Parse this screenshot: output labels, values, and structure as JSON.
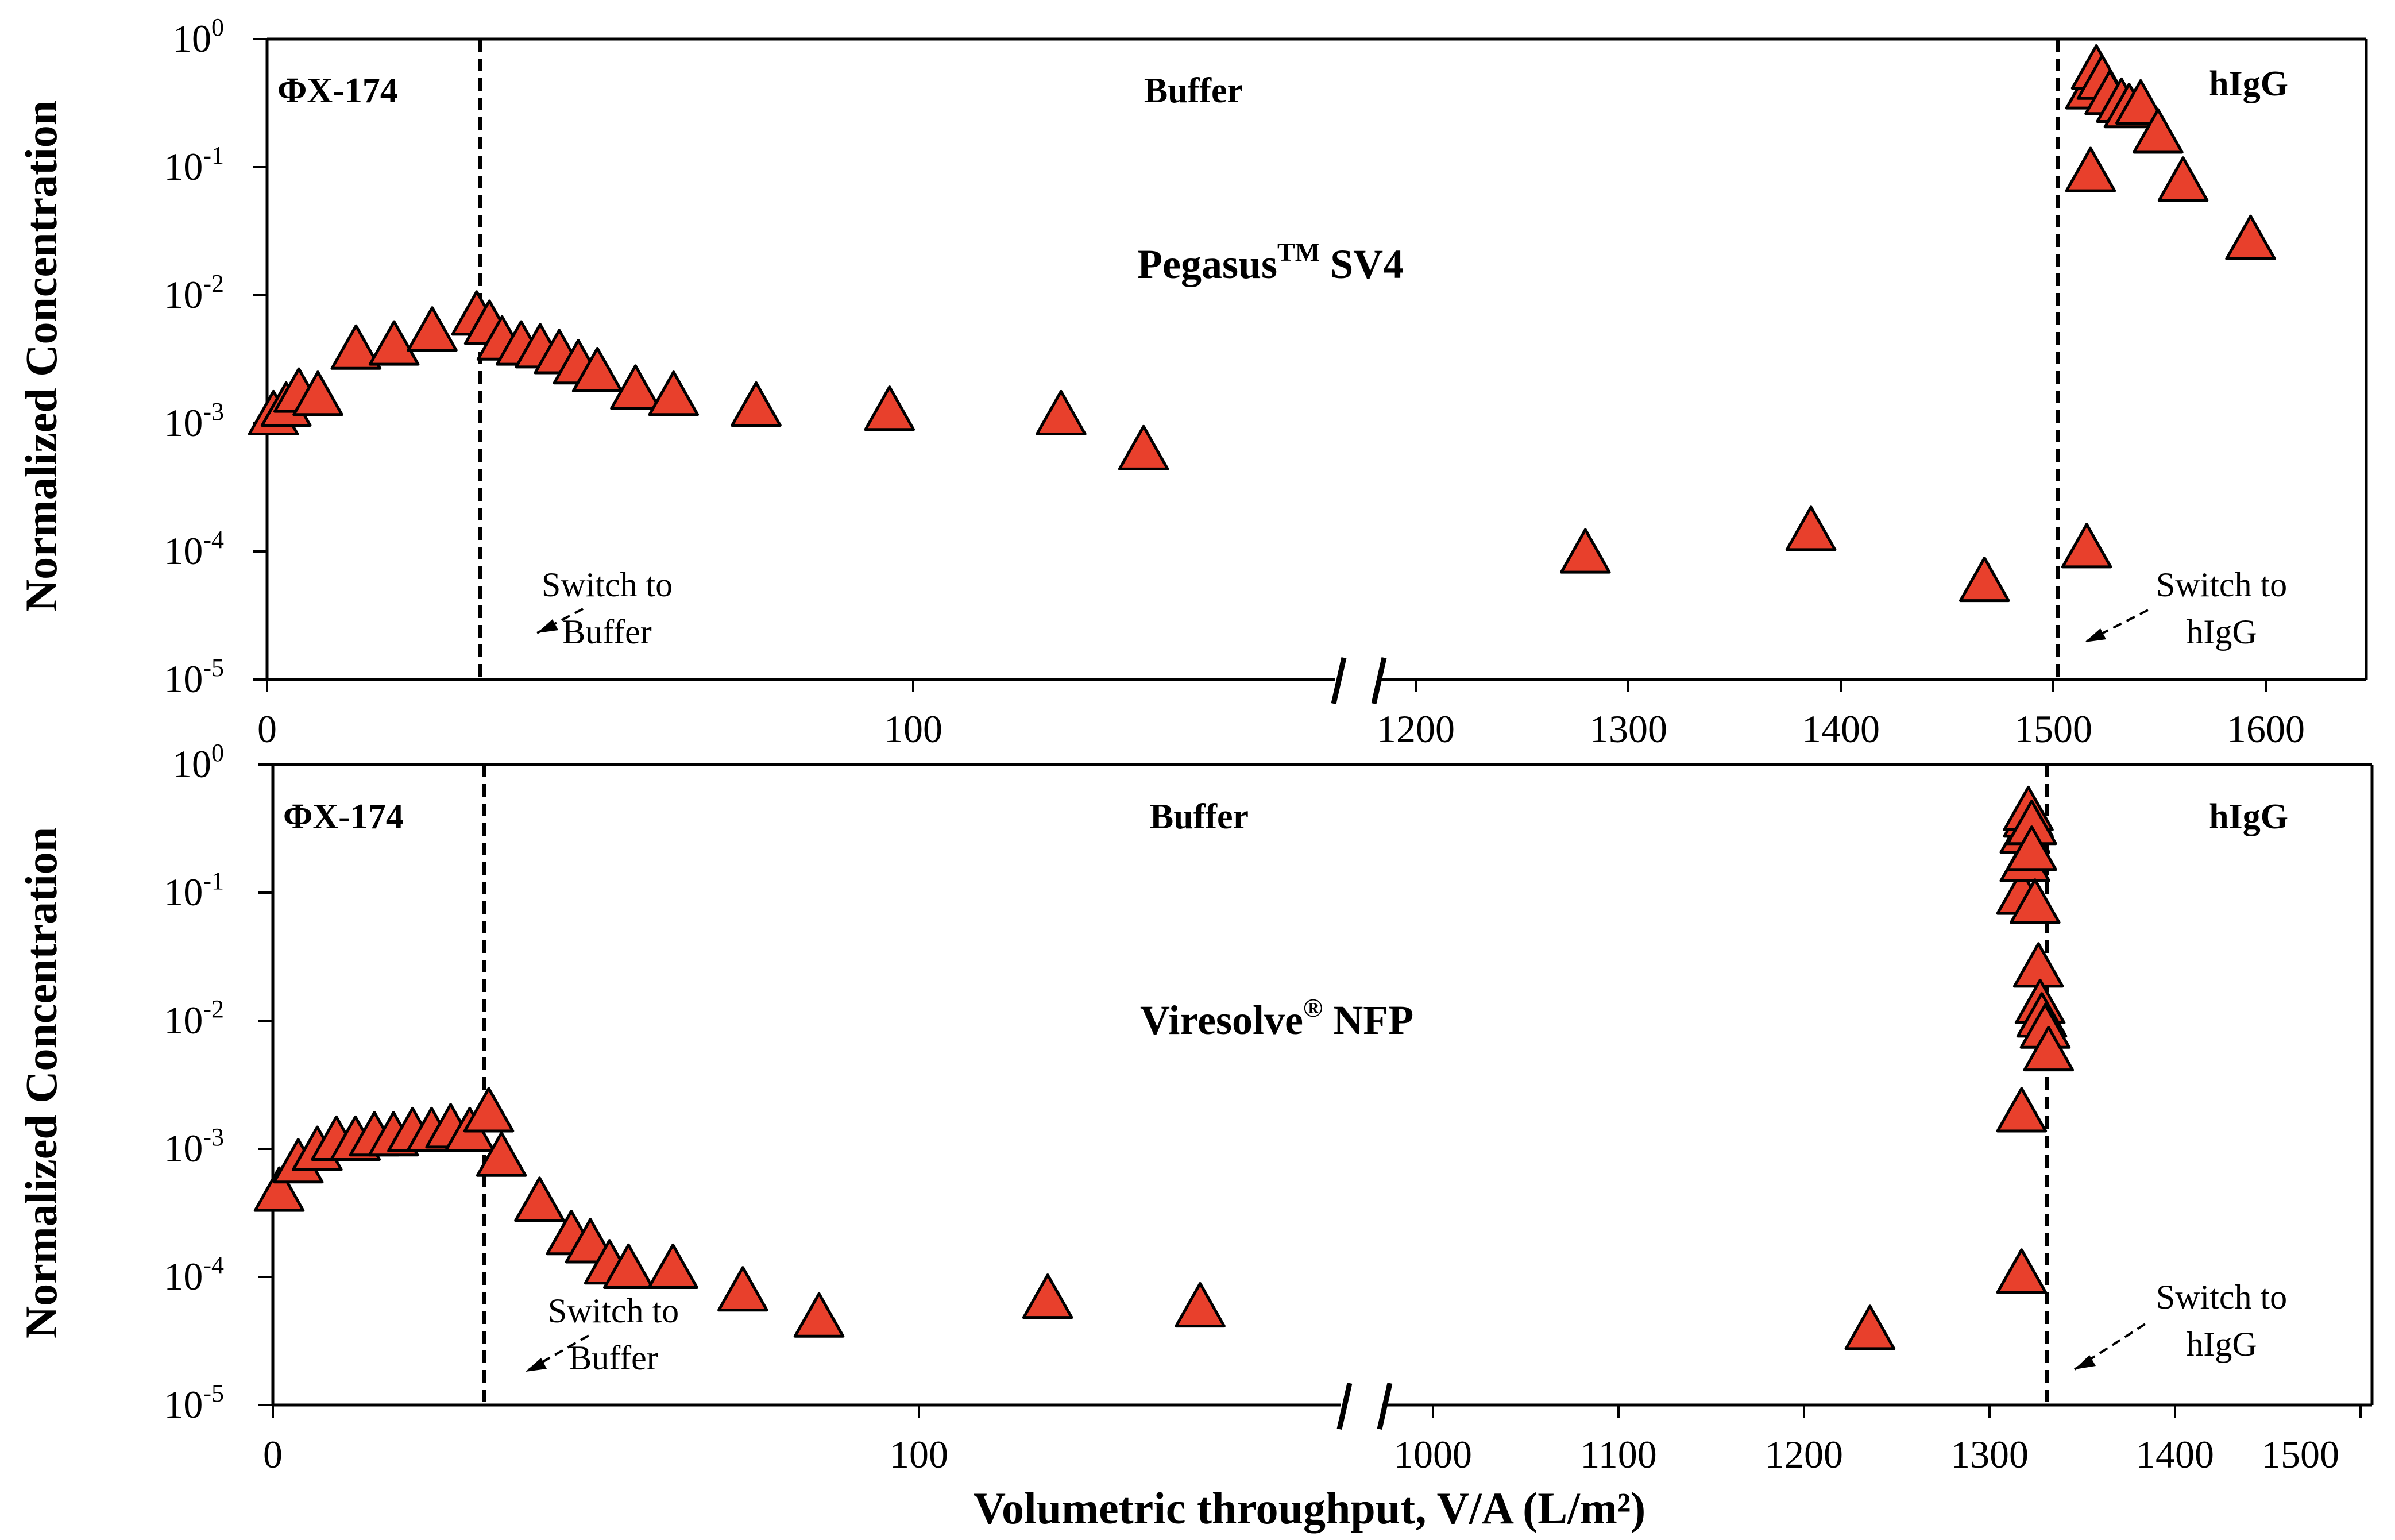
{
  "colors": {
    "marker_fill": "#e8402c",
    "marker_stroke": "#000000"
  },
  "chart_data": [
    {
      "type": "scatter",
      "id": "top",
      "title": "Pegasus",
      "title_sup": "TM",
      "title_rest": " SV4",
      "xlabel": "",
      "ylabel": "Normalized Concentration",
      "yscale": "log",
      "ylim": [
        1e-05,
        1
      ],
      "y_ticks": [
        {
          "base": "10",
          "exp": "0"
        },
        {
          "base": "10",
          "exp": "-1"
        },
        {
          "base": "10",
          "exp": "-2"
        },
        {
          "base": "10",
          "exp": "-3"
        },
        {
          "base": "10",
          "exp": "-4"
        },
        {
          "base": "10",
          "exp": "-5"
        }
      ],
      "x_segment1_range": [
        0,
        170
      ],
      "x_segment2_range": [
        1130,
        1645
      ],
      "x_tick_labels_seg1": [
        "0",
        "100"
      ],
      "x_tick_labels_seg2": [
        "1200",
        "1300",
        "1400",
        "1500",
        "1600"
      ],
      "switch_buffer_x": 33,
      "switch_hIgG_x": 1500,
      "phase_labels": [
        "ΦX-174",
        "Buffer",
        "hIgG"
      ],
      "annotation_buffer": [
        "Switch to",
        "Buffer"
      ],
      "annotation_higg": [
        "Switch to",
        "hIgG"
      ],
      "points_seg1": [
        [
          1,
          0.0012
        ],
        [
          3,
          0.0014
        ],
        [
          5,
          0.0018
        ],
        [
          8,
          0.0017
        ],
        [
          14,
          0.0039
        ],
        [
          20,
          0.0042
        ],
        [
          26,
          0.0054
        ],
        [
          33,
          0.0072
        ],
        [
          35,
          0.0061
        ],
        [
          37,
          0.0046
        ],
        [
          40,
          0.0042
        ],
        [
          43,
          0.004
        ],
        [
          46,
          0.0036
        ],
        [
          49,
          0.003
        ],
        [
          52,
          0.0026
        ],
        [
          58,
          0.0019
        ],
        [
          64,
          0.0017
        ],
        [
          77,
          0.0014
        ],
        [
          98,
          0.0013
        ],
        [
          125,
          0.0012
        ],
        [
          138,
          0.00064
        ]
      ],
      "points_seg2": [
        [
          1240,
          0.0001
        ],
        [
          1357,
          0.00015
        ],
        [
          1447,
          6e-05
        ],
        [
          1500,
          0.00011
        ],
        [
          1502,
          0.095
        ],
        [
          1502,
          0.42
        ],
        [
          1505,
          0.6
        ],
        [
          1508,
          0.5
        ],
        [
          1512,
          0.38
        ],
        [
          1518,
          0.33
        ],
        [
          1522,
          0.3
        ],
        [
          1528,
          0.32
        ],
        [
          1537,
          0.19
        ],
        [
          1550,
          0.08
        ],
        [
          1585,
          0.028
        ]
      ]
    },
    {
      "type": "scatter",
      "id": "bottom",
      "title": "Viresolve",
      "title_sup": "®",
      "title_rest": " NFP",
      "xlabel": "Volumetric throughput, V/A (L/m²)",
      "ylabel": "Normalized Concentration",
      "yscale": "log",
      "ylim": [
        1e-05,
        1
      ],
      "y_ticks": [
        {
          "base": "10",
          "exp": "0"
        },
        {
          "base": "10",
          "exp": "-1"
        },
        {
          "base": "10",
          "exp": "-2"
        },
        {
          "base": "10",
          "exp": "-3"
        },
        {
          "base": "10",
          "exp": "-4"
        },
        {
          "base": "10",
          "exp": "-5"
        }
      ],
      "x_segment1_range": [
        0,
        170
      ],
      "x_segment2_range": [
        975,
        1560
      ],
      "x_tick_labels_seg1": [
        "0",
        "100"
      ],
      "x_tick_labels_seg2": [
        "1000",
        "1100",
        "1200",
        "1300",
        "1400",
        "1500"
      ],
      "switch_buffer_x": 33,
      "switch_hIgG_x": 1355,
      "phase_labels": [
        "ΦX-174",
        "Buffer",
        "hIgG"
      ],
      "annotation_buffer": [
        "Switch to",
        "Buffer"
      ],
      "annotation_higg": [
        "Switch to",
        "hIgG"
      ],
      "points_seg1": [
        [
          1,
          0.00048
        ],
        [
          4,
          0.0008
        ],
        [
          7,
          0.001
        ],
        [
          10,
          0.0012
        ],
        [
          13,
          0.0012
        ],
        [
          16,
          0.0013
        ],
        [
          19,
          0.0013
        ],
        [
          22,
          0.0014
        ],
        [
          25,
          0.0014
        ],
        [
          28,
          0.0015
        ],
        [
          31,
          0.0014
        ],
        [
          34,
          0.002
        ],
        [
          36,
          0.0009
        ],
        [
          42,
          0.0004
        ],
        [
          47,
          0.00022
        ],
        [
          50,
          0.00019
        ],
        [
          53,
          0.00013
        ],
        [
          56,
          0.00012
        ],
        [
          63,
          0.00012
        ],
        [
          74,
          8e-05
        ],
        [
          86,
          5e-05
        ],
        [
          122,
          7e-05
        ],
        [
          146,
          6e-05
        ]
      ],
      "points_seg2": [
        [
          1262,
          4e-05
        ],
        [
          1352,
          0.00011
        ],
        [
          1352,
          0.002
        ],
        [
          1352,
          0.1
        ],
        [
          1354,
          0.18
        ],
        [
          1354,
          0.3
        ],
        [
          1356,
          0.4
        ],
        [
          1356,
          0.45
        ],
        [
          1358,
          0.35
        ],
        [
          1358,
          0.22
        ],
        [
          1360,
          0.085
        ],
        [
          1362,
          0.027
        ],
        [
          1363,
          0.014
        ],
        [
          1364,
          0.011
        ],
        [
          1366,
          0.009
        ],
        [
          1368,
          0.006
        ]
      ]
    }
  ]
}
